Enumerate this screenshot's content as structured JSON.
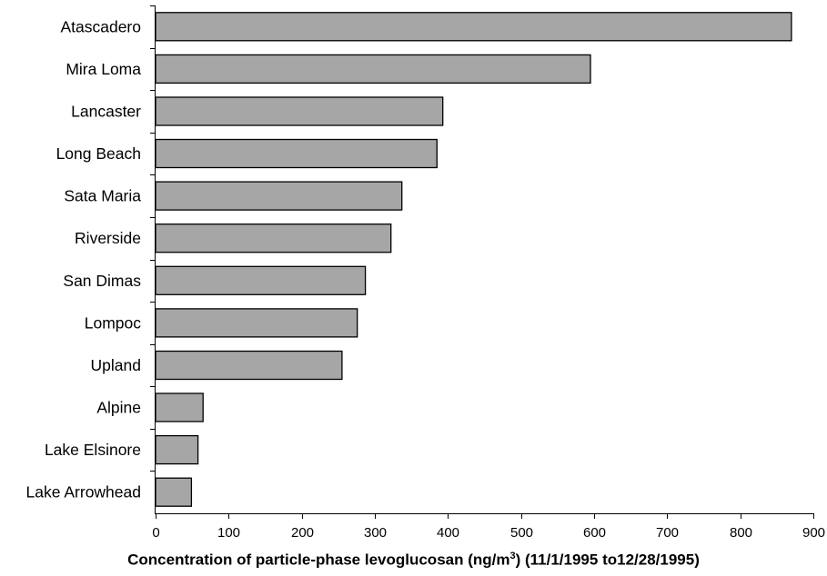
{
  "chart_data": {
    "type": "bar",
    "orientation": "horizontal",
    "categories": [
      "Atascadero",
      "Mira Loma",
      "Lancaster",
      "Long Beach",
      "Sata Maria",
      "Riverside",
      "San Dimas",
      "Lompoc",
      "Upland",
      "Alpine",
      "Lake Elsinore",
      "Lake Arrowhead"
    ],
    "values": [
      870,
      595,
      393,
      385,
      337,
      322,
      287,
      276,
      255,
      65,
      58,
      49
    ],
    "title": "",
    "xlabel_pre": "Concentration of particle-phase levoglucosan (ng/m",
    "xlabel_sup": "3",
    "xlabel_post": ") (11/1/1995 to12/28/1995)",
    "ylabel": "",
    "xlim": [
      0,
      900
    ],
    "xticks": [
      0,
      100,
      200,
      300,
      400,
      500,
      600,
      700,
      800,
      900
    ],
    "grid": false,
    "bar_color": "#a6a6a6",
    "bar_edge_color": "#000000"
  }
}
